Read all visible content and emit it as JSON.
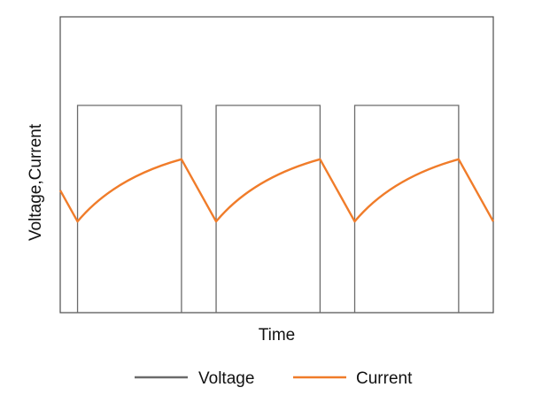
{
  "chart_data": {
    "type": "line",
    "title": "",
    "xlabel": "Time",
    "ylabel": "Voltage,Current",
    "show_ticks": false,
    "grid": false,
    "legend_position": "bottom",
    "xlim": [
      0,
      100
    ],
    "ylim": [
      0,
      100
    ],
    "series": [
      {
        "name": "Voltage",
        "color": "#6b6b6b",
        "style": "square-wave",
        "low": 0,
        "high": 100,
        "pulses": [
          [
            4,
            28
          ],
          [
            36,
            60
          ],
          [
            68,
            92
          ]
        ]
      },
      {
        "name": "Current",
        "color": "#f07c2a",
        "style": "charge-discharge",
        "x": [
          0,
          4,
          28,
          36,
          60,
          68,
          92,
          100
        ],
        "y": [
          59,
          44,
          74,
          44,
          74,
          44,
          74,
          44
        ]
      }
    ]
  }
}
